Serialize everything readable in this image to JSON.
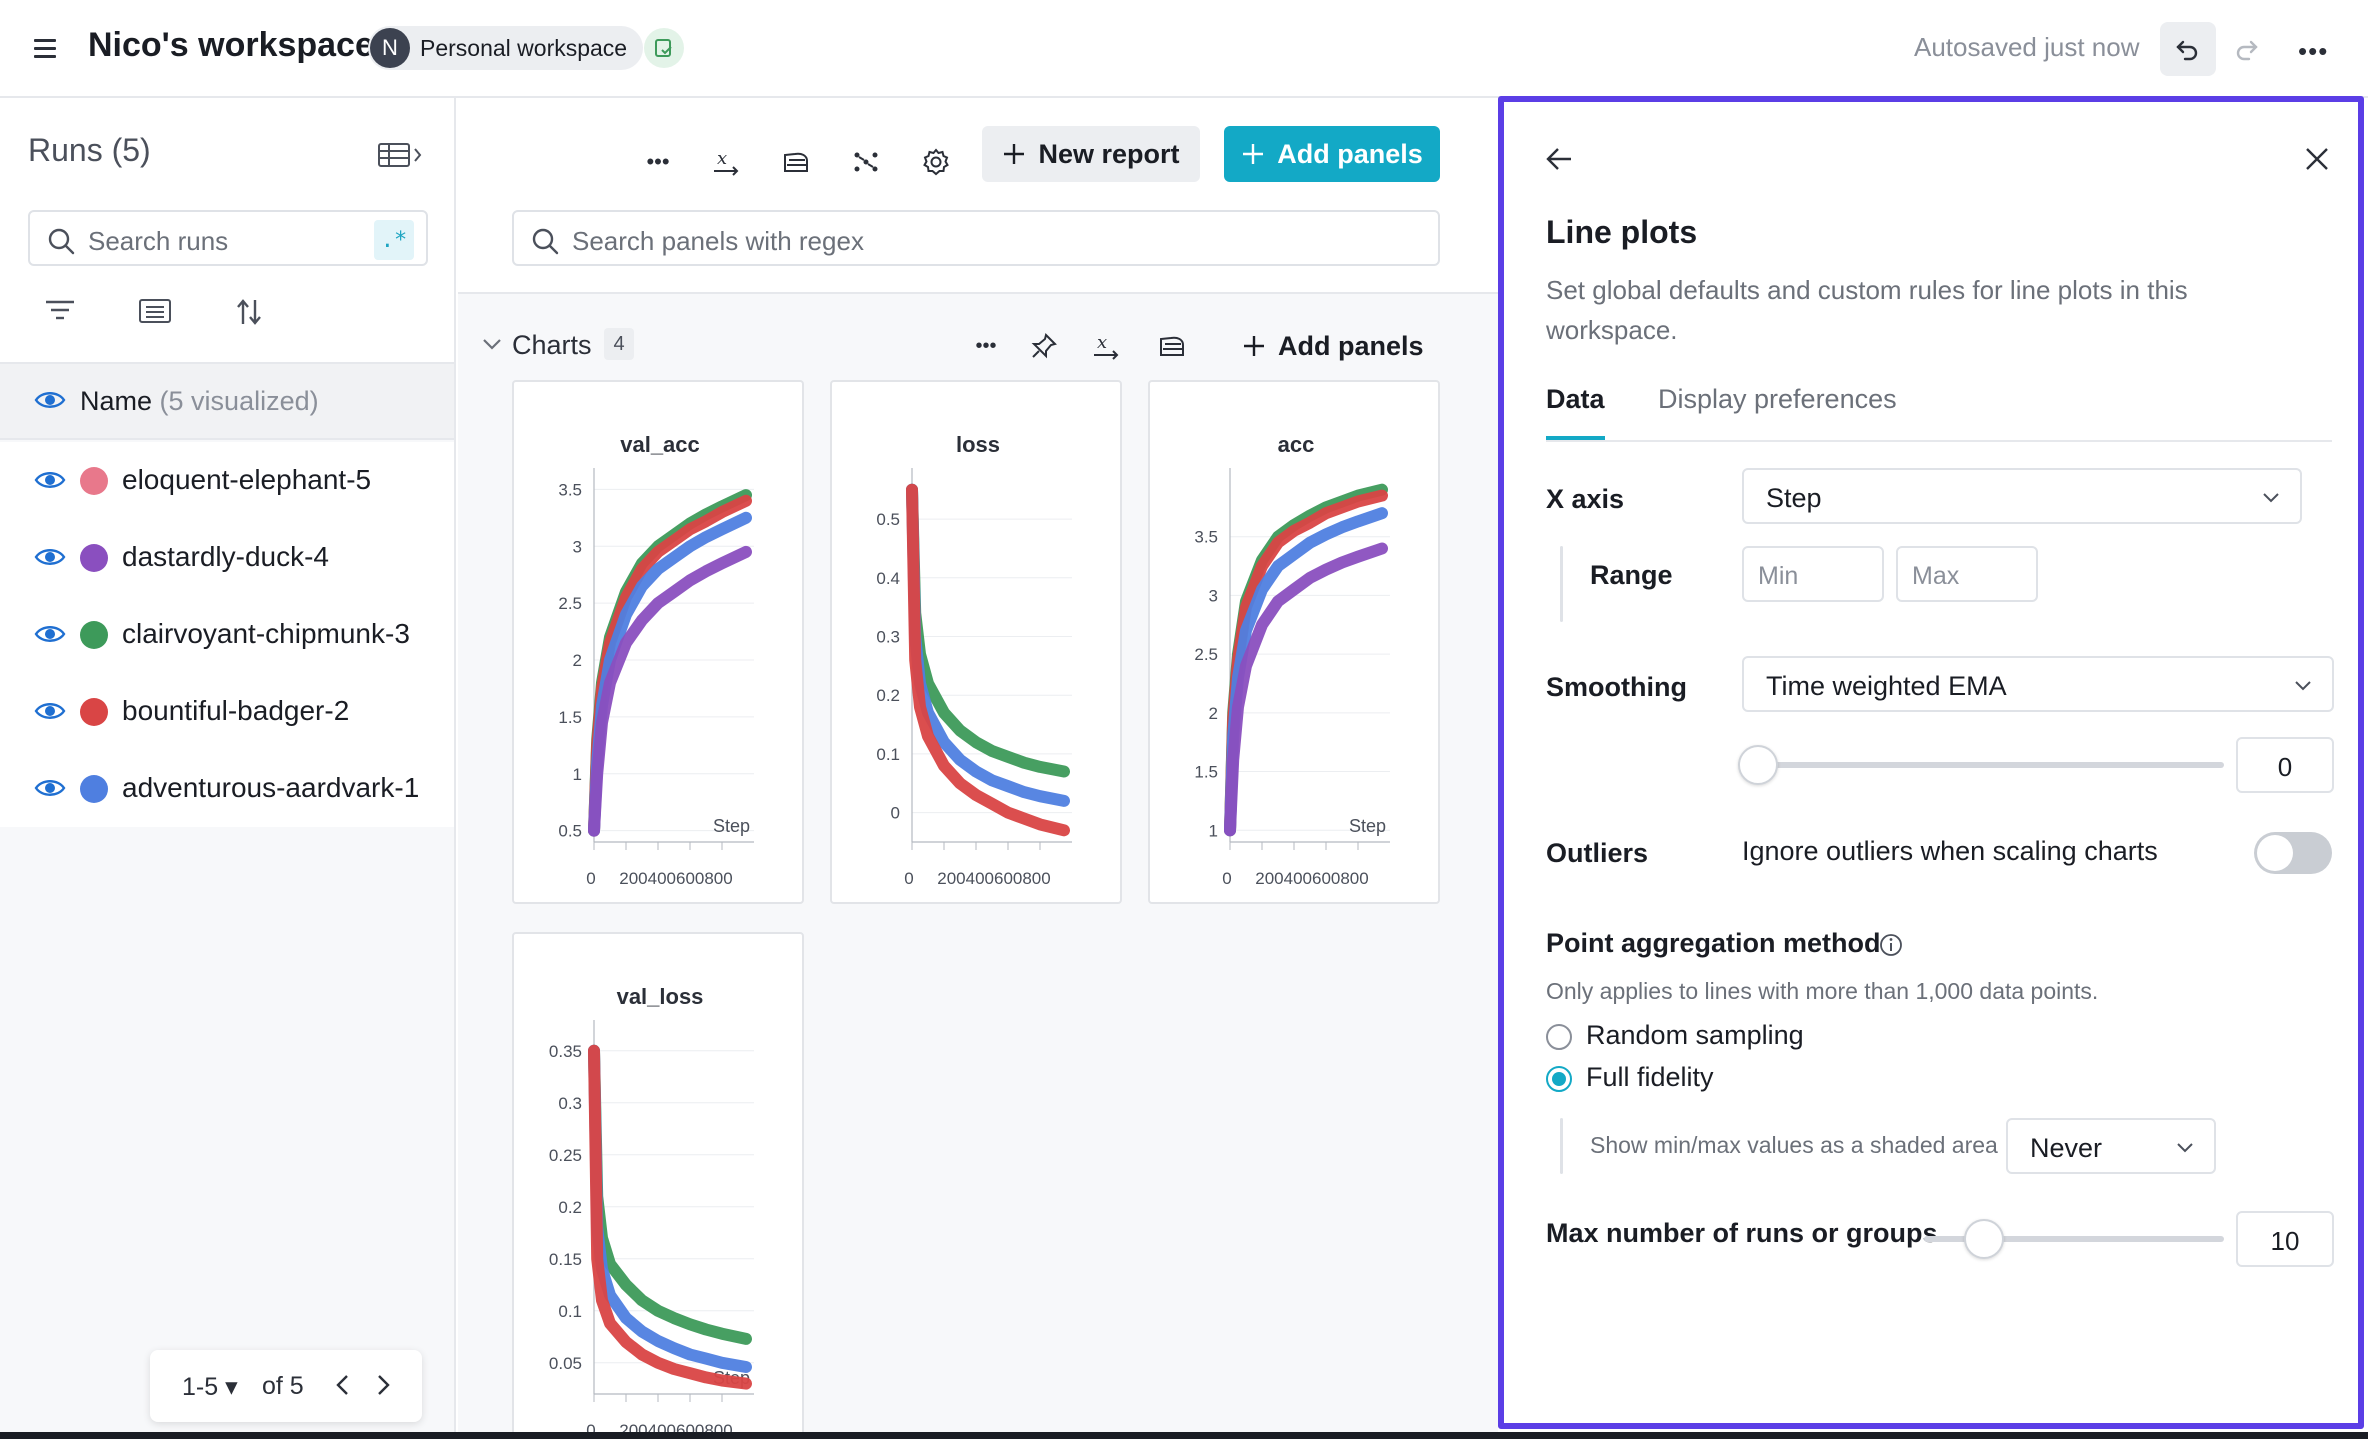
{
  "header": {
    "workspace_title": "Nico's workspace",
    "avatar_initial": "N",
    "workspace_type": "Personal workspace",
    "autosave_status": "Autosaved just now"
  },
  "sidebar": {
    "runs_title": "Runs (5)",
    "search_placeholder": "Search runs",
    "regex_label": ".*",
    "name_column": "Name",
    "name_visualized": "(5 visualized)",
    "runs": [
      {
        "name": "eloquent-elephant-5",
        "color": "#e8788b"
      },
      {
        "name": "dastardly-duck-4",
        "color": "#8a4fbf"
      },
      {
        "name": "clairvoyant-chipmunk-3",
        "color": "#3d9a5a"
      },
      {
        "name": "bountiful-badger-2",
        "color": "#d94545"
      },
      {
        "name": "adventurous-aardvark-1",
        "color": "#4f7fe0"
      }
    ],
    "pagination": {
      "range": "1-5",
      "of": "of 5"
    }
  },
  "workspace": {
    "new_report_label": "New report",
    "add_panels_label": "Add panels",
    "search_panels_placeholder": "Search panels with regex",
    "section_title": "Charts",
    "section_count": "4",
    "section_add_panels_label": "Add panels"
  },
  "chart_data": [
    {
      "type": "line",
      "title": "val_acc",
      "xlabel": "Step",
      "x_ticks": [
        "0",
        "200",
        "400",
        "600",
        "800"
      ],
      "y_ticks": [
        "0.5",
        "1",
        "1.5",
        "2",
        "2.5",
        "3",
        "3.5"
      ],
      "xlim": [
        0,
        1000
      ],
      "ylim": [
        0.4,
        3.6
      ],
      "series": [
        {
          "color": "#3d9a5a",
          "x": [
            0,
            20,
            50,
            100,
            200,
            300,
            400,
            500,
            600,
            700,
            800,
            950
          ],
          "y": [
            0.5,
            1.3,
            1.8,
            2.2,
            2.6,
            2.85,
            3.0,
            3.1,
            3.2,
            3.28,
            3.35,
            3.45
          ]
        },
        {
          "color": "#d94545",
          "x": [
            0,
            20,
            50,
            100,
            200,
            300,
            400,
            500,
            600,
            700,
            800,
            950
          ],
          "y": [
            0.5,
            1.25,
            1.75,
            2.15,
            2.55,
            2.8,
            2.95,
            3.05,
            3.15,
            3.22,
            3.3,
            3.4
          ]
        },
        {
          "color": "#4f7fe0",
          "x": [
            0,
            20,
            50,
            100,
            200,
            300,
            400,
            500,
            600,
            700,
            800,
            950
          ],
          "y": [
            0.5,
            1.1,
            1.6,
            2.0,
            2.4,
            2.65,
            2.8,
            2.9,
            3.0,
            3.08,
            3.15,
            3.25
          ]
        },
        {
          "color": "#8a4fbf",
          "x": [
            0,
            20,
            50,
            100,
            200,
            300,
            400,
            500,
            600,
            700,
            800,
            950
          ],
          "y": [
            0.5,
            1.0,
            1.45,
            1.8,
            2.15,
            2.35,
            2.5,
            2.6,
            2.7,
            2.78,
            2.85,
            2.95
          ]
        }
      ]
    },
    {
      "type": "line",
      "title": "loss",
      "xlabel": "",
      "x_ticks": [
        "0",
        "200",
        "400",
        "600",
        "800"
      ],
      "y_ticks": [
        "0",
        "0.1",
        "0.2",
        "0.3",
        "0.4",
        "0.5"
      ],
      "xlim": [
        0,
        1000
      ],
      "ylim": [
        -0.05,
        0.57
      ],
      "series": [
        {
          "color": "#3d9a5a",
          "x": [
            0,
            20,
            50,
            100,
            200,
            300,
            400,
            500,
            600,
            700,
            800,
            950
          ],
          "y": [
            0.55,
            0.34,
            0.27,
            0.22,
            0.17,
            0.14,
            0.12,
            0.105,
            0.095,
            0.085,
            0.078,
            0.07
          ]
        },
        {
          "color": "#4f7fe0",
          "x": [
            0,
            20,
            50,
            100,
            200,
            300,
            400,
            500,
            600,
            700,
            800,
            950
          ],
          "y": [
            0.55,
            0.3,
            0.22,
            0.17,
            0.12,
            0.09,
            0.07,
            0.055,
            0.045,
            0.035,
            0.028,
            0.02
          ]
        },
        {
          "color": "#d94545",
          "x": [
            0,
            20,
            50,
            100,
            200,
            300,
            400,
            500,
            600,
            700,
            800,
            950
          ],
          "y": [
            0.55,
            0.26,
            0.18,
            0.13,
            0.08,
            0.05,
            0.03,
            0.015,
            0.0,
            -0.01,
            -0.02,
            -0.03
          ]
        }
      ]
    },
    {
      "type": "line",
      "title": "acc",
      "xlabel": "Step",
      "x_ticks": [
        "0",
        "200",
        "400",
        "600",
        "800"
      ],
      "y_ticks": [
        "1",
        "1.5",
        "2",
        "2.5",
        "3",
        "3.5"
      ],
      "xlim": [
        0,
        1000
      ],
      "ylim": [
        0.9,
        4.0
      ],
      "series": [
        {
          "color": "#3d9a5a",
          "x": [
            0,
            20,
            50,
            100,
            200,
            300,
            400,
            500,
            600,
            700,
            800,
            950
          ],
          "y": [
            1.0,
            2.0,
            2.5,
            2.95,
            3.3,
            3.5,
            3.6,
            3.68,
            3.75,
            3.8,
            3.85,
            3.9
          ]
        },
        {
          "color": "#d94545",
          "x": [
            0,
            20,
            50,
            100,
            200,
            300,
            400,
            500,
            600,
            700,
            800,
            950
          ],
          "y": [
            1.0,
            1.95,
            2.45,
            2.9,
            3.25,
            3.45,
            3.55,
            3.62,
            3.7,
            3.75,
            3.8,
            3.85
          ]
        },
        {
          "color": "#4f7fe0",
          "x": [
            0,
            20,
            50,
            100,
            200,
            300,
            400,
            500,
            600,
            700,
            800,
            950
          ],
          "y": [
            1.0,
            1.8,
            2.3,
            2.7,
            3.05,
            3.25,
            3.35,
            3.45,
            3.52,
            3.58,
            3.63,
            3.7
          ]
        },
        {
          "color": "#8a4fbf",
          "x": [
            0,
            20,
            50,
            100,
            200,
            300,
            400,
            500,
            600,
            700,
            800,
            950
          ],
          "y": [
            1.0,
            1.6,
            2.05,
            2.4,
            2.75,
            2.95,
            3.05,
            3.15,
            3.22,
            3.28,
            3.33,
            3.4
          ]
        }
      ]
    },
    {
      "type": "line",
      "title": "val_loss",
      "xlabel": "Step",
      "x_ticks": [
        "0",
        "200",
        "400",
        "600",
        "800"
      ],
      "y_ticks": [
        "0.05",
        "0.1",
        "0.15",
        "0.2",
        "0.25",
        "0.3",
        "0.35"
      ],
      "xlim": [
        0,
        1000
      ],
      "ylim": [
        0.02,
        0.37
      ],
      "series": [
        {
          "color": "#3d9a5a",
          "x": [
            0,
            20,
            50,
            100,
            200,
            300,
            400,
            500,
            600,
            700,
            800,
            950
          ],
          "y": [
            0.35,
            0.21,
            0.17,
            0.145,
            0.125,
            0.11,
            0.1,
            0.093,
            0.087,
            0.082,
            0.078,
            0.073
          ]
        },
        {
          "color": "#4f7fe0",
          "x": [
            0,
            20,
            50,
            100,
            200,
            300,
            400,
            500,
            600,
            700,
            800,
            950
          ],
          "y": [
            0.35,
            0.18,
            0.14,
            0.115,
            0.093,
            0.08,
            0.071,
            0.064,
            0.058,
            0.054,
            0.05,
            0.046
          ]
        },
        {
          "color": "#d94545",
          "x": [
            0,
            20,
            50,
            100,
            200,
            300,
            400,
            500,
            600,
            700,
            800,
            950
          ],
          "y": [
            0.35,
            0.15,
            0.11,
            0.088,
            0.07,
            0.058,
            0.05,
            0.044,
            0.04,
            0.036,
            0.033,
            0.03
          ]
        }
      ]
    }
  ],
  "line_plots_panel": {
    "title": "Line plots",
    "description": "Set global defaults and custom rules for line plots in this workspace.",
    "tabs": [
      "Data",
      "Display preferences"
    ],
    "x_axis_label": "X axis",
    "x_axis_value": "Step",
    "range_label": "Range",
    "range_min_placeholder": "Min",
    "range_max_placeholder": "Max",
    "smoothing_label": "Smoothing",
    "smoothing_value": "Time weighted EMA",
    "smoothing_amount": "0",
    "outliers_label": "Outliers",
    "outliers_text": "Ignore outliers when scaling charts",
    "outliers_enabled": false,
    "aggregation_label": "Point aggregation method",
    "aggregation_note": "Only applies to lines with more than 1,000 data points.",
    "aggregation_options": [
      "Random sampling",
      "Full fidelity"
    ],
    "aggregation_selected": "Full fidelity",
    "minmax_label": "Show min/max values as a shaded area",
    "minmax_value": "Never",
    "max_runs_label": "Max number of runs or groups",
    "max_runs_value": "10"
  }
}
